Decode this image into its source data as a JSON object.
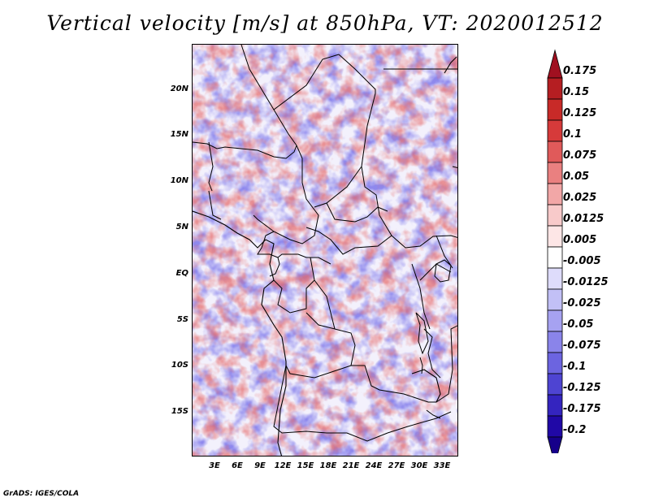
{
  "title": "Vertical velocity [m/s] at 850hPa, VT: 2020012512",
  "footer": "GrADS: IGES/COLA",
  "map": {
    "lat_labels": [
      "20N",
      "15N",
      "10N",
      "5N",
      "EQ",
      "5S",
      "10S",
      "15S"
    ],
    "lon_labels": [
      "3E",
      "6E",
      "9E",
      "12E",
      "15E",
      "18E",
      "21E",
      "24E",
      "27E",
      "30E",
      "33E"
    ],
    "lat_range": [
      -20,
      25
    ],
    "lon_range": [
      0,
      35
    ]
  },
  "colorbar": {
    "levels": [
      "0.175",
      "0.15",
      "0.125",
      "0.1",
      "0.075",
      "0.05",
      "0.025",
      "0.0125",
      "0.005",
      "-0.005",
      "-0.0125",
      "-0.025",
      "-0.05",
      "-0.075",
      "-0.1",
      "-0.125",
      "-0.175",
      "-0.2"
    ],
    "colors": [
      "#a01020",
      "#b51e22",
      "#c82a28",
      "#d63a3a",
      "#e05a5a",
      "#ea8080",
      "#f2a7a7",
      "#f8caca",
      "#fde6e6",
      "#ffffff",
      "#dedcfb",
      "#c2c0f6",
      "#a6a2f1",
      "#8a84ea",
      "#6c64e0",
      "#4e44d2",
      "#3424bf",
      "#2008a6",
      "#16008a"
    ]
  }
}
